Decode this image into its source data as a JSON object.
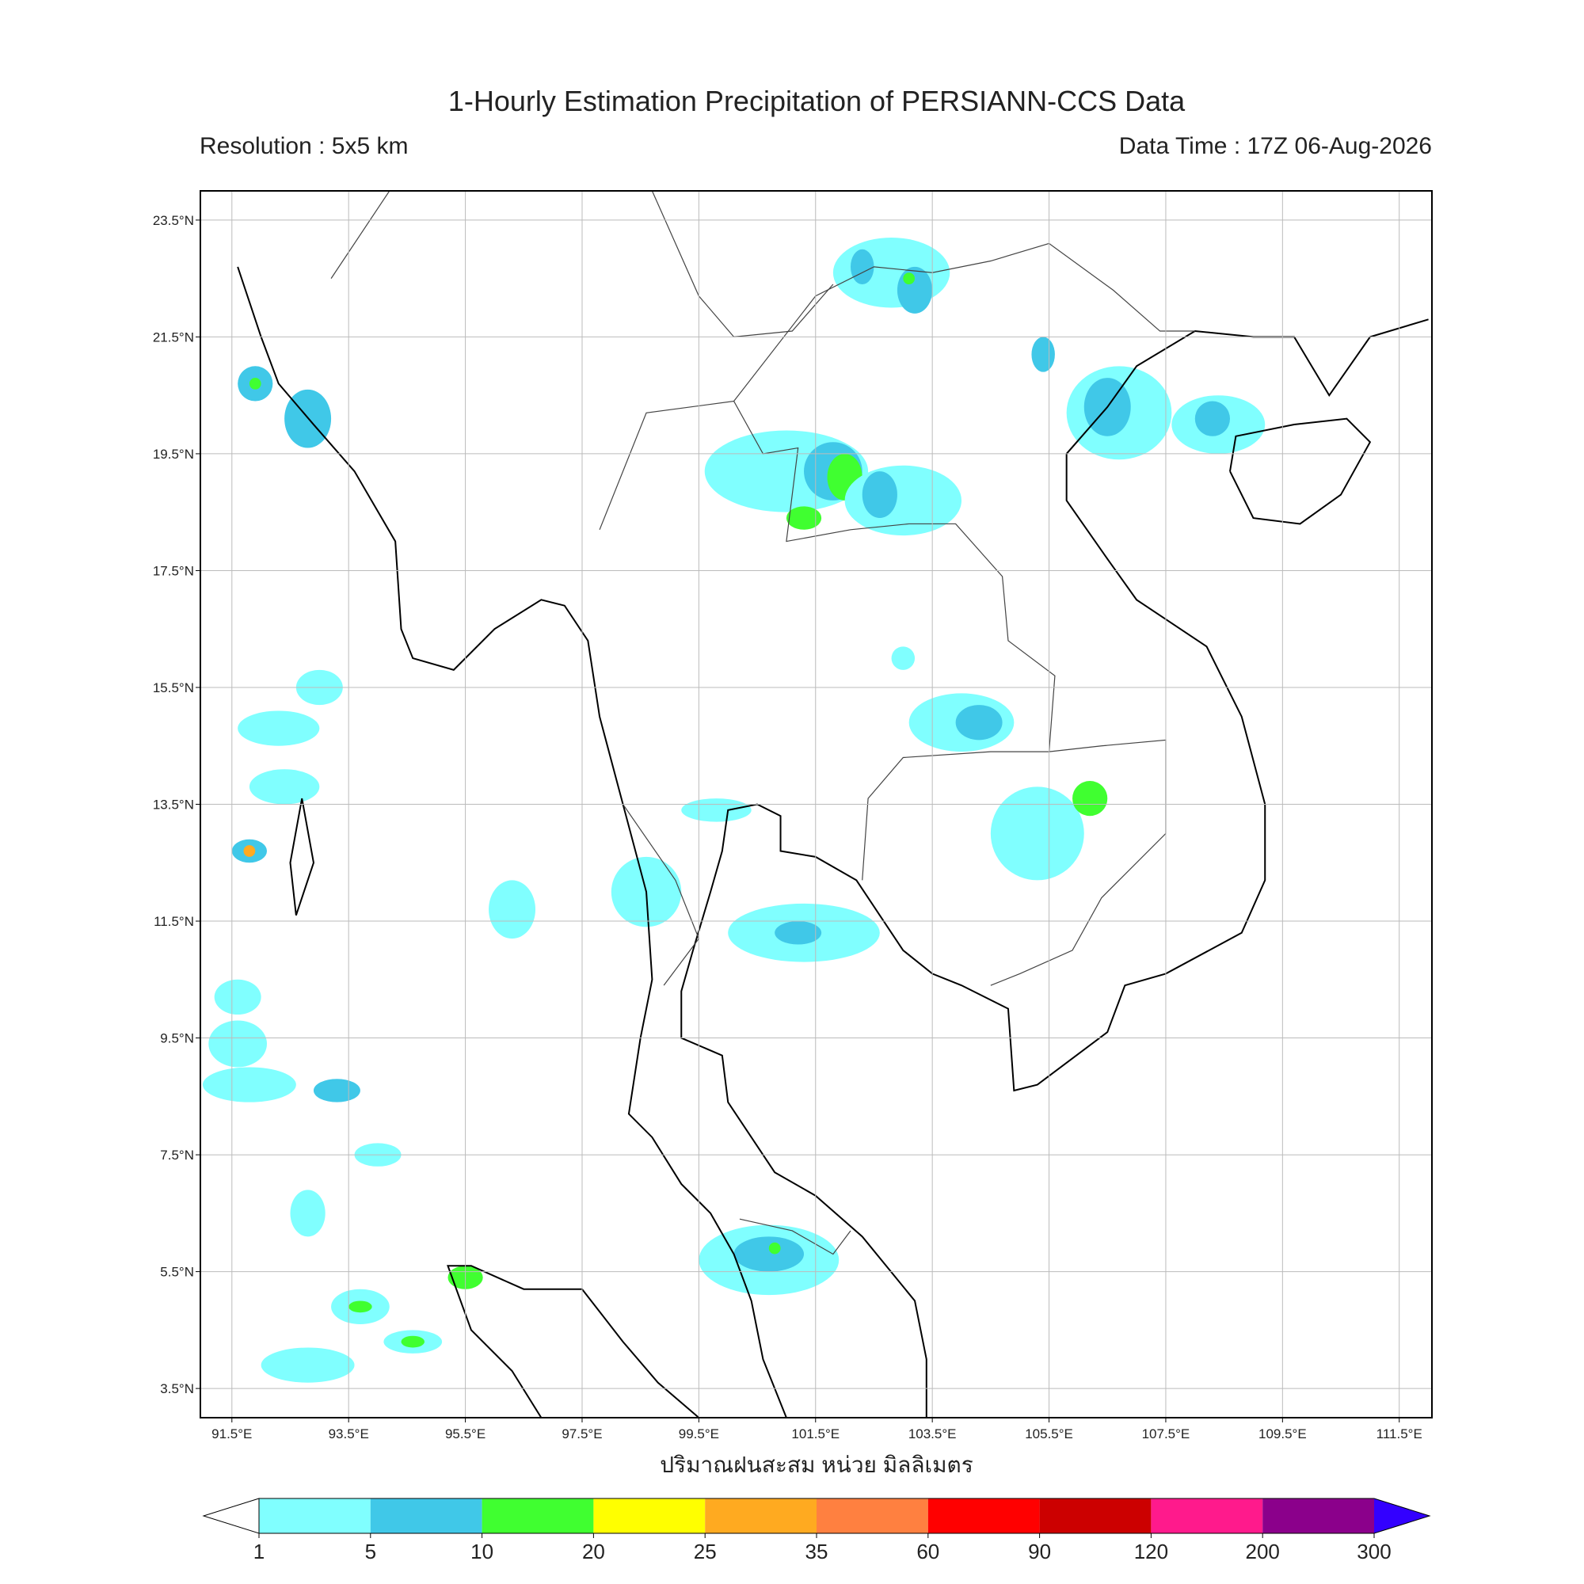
{
  "title": "1-Hourly Estimation Precipitation of PERSIANN-CCS Data",
  "resolution": "Resolution : 5x5 km",
  "data_time": "Data Time : 17Z 06-Aug-2026",
  "map": {
    "xlim": [
      90.96,
      112.06
    ],
    "ylim": [
      3.0,
      24.0
    ],
    "grid": true,
    "xticks": [
      {
        "value": 91.5,
        "label": "91.5°E"
      },
      {
        "value": 93.5,
        "label": "93.5°E"
      },
      {
        "value": 95.5,
        "label": "95.5°E"
      },
      {
        "value": 97.5,
        "label": "97.5°E"
      },
      {
        "value": 99.5,
        "label": "99.5°E"
      },
      {
        "value": 101.5,
        "label": "101.5°E"
      },
      {
        "value": 103.5,
        "label": "103.5°E"
      },
      {
        "value": 105.5,
        "label": "105.5°E"
      },
      {
        "value": 107.5,
        "label": "107.5°E"
      },
      {
        "value": 109.5,
        "label": "109.5°E"
      },
      {
        "value": 111.5,
        "label": "111.5°E"
      }
    ],
    "yticks": [
      {
        "value": 23.5,
        "label": "23.5°N"
      },
      {
        "value": 21.5,
        "label": "21.5°N"
      },
      {
        "value": 19.5,
        "label": "19.5°N"
      },
      {
        "value": 17.5,
        "label": "17.5°N"
      },
      {
        "value": 15.5,
        "label": "15.5°N"
      },
      {
        "value": 13.5,
        "label": "13.5°N"
      },
      {
        "value": 11.5,
        "label": "11.5°N"
      },
      {
        "value": 9.5,
        "label": "9.5°N"
      },
      {
        "value": 7.5,
        "label": "7.5°N"
      },
      {
        "value": 5.5,
        "label": "5.5°N"
      },
      {
        "value": 3.5,
        "label": "3.5°N"
      }
    ]
  },
  "colorbar": {
    "label": "ปริมาณฝนสะสม หน่วย มิลลิเมตร",
    "levels": [
      1,
      5,
      10,
      20,
      25,
      35,
      60,
      90,
      120,
      200,
      300
    ],
    "colors": [
      "#80ffff",
      "#40c8e8",
      "#40ff30",
      "#ffff00",
      "#ffaa20",
      "#ff8040",
      "#ff0000",
      "#cc0000",
      "#ff1a8c",
      "#8b008b"
    ],
    "under_color": "#ffffff",
    "over_color": "#3300ff"
  }
}
